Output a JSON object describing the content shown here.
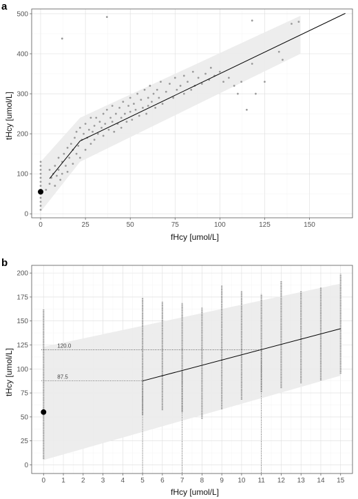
{
  "chart_data": [
    {
      "panel": "a",
      "type": "scatter",
      "xlabel": "fHcy [umol/L]",
      "ylabel": "tHcy [umol/L]",
      "xlim": [
        -5,
        174
      ],
      "ylim": [
        -10,
        512
      ],
      "xticks": [
        0,
        25,
        50,
        75,
        100,
        125,
        150
      ],
      "yticks": [
        0,
        100,
        200,
        300,
        400,
        500
      ],
      "grid": true,
      "band": {
        "x": [
          0,
          0,
          22,
          145,
          145,
          22,
          0
        ],
        "y": [
          5,
          130,
          240,
          495,
          400,
          130,
          5
        ],
        "color": "#ebebeb"
      },
      "fit_line": {
        "x": [
          5,
          22,
          170
        ],
        "y": [
          88,
          182,
          501
        ],
        "color": "#000000"
      },
      "marker": {
        "x": 0,
        "y": 55
      },
      "scatter_color": "#9a9a9a",
      "points": [
        [
          0,
          10
        ],
        [
          0,
          20
        ],
        [
          0,
          30
        ],
        [
          0,
          40
        ],
        [
          0,
          50
        ],
        [
          0,
          60
        ],
        [
          0,
          70
        ],
        [
          0,
          80
        ],
        [
          0,
          90
        ],
        [
          0,
          100
        ],
        [
          0,
          110
        ],
        [
          0,
          120
        ],
        [
          0,
          130
        ],
        [
          3,
          60
        ],
        [
          5,
          75
        ],
        [
          5,
          110
        ],
        [
          6,
          90
        ],
        [
          7,
          100
        ],
        [
          8,
          70
        ],
        [
          8,
          120
        ],
        [
          9,
          95
        ],
        [
          10,
          110
        ],
        [
          10,
          140
        ],
        [
          11,
          85
        ],
        [
          12,
          130
        ],
        [
          12,
          100
        ],
        [
          13,
          150
        ],
        [
          14,
          120
        ],
        [
          15,
          165
        ],
        [
          15,
          105
        ],
        [
          16,
          140
        ],
        [
          17,
          175
        ],
        [
          18,
          125
        ],
        [
          18,
          160
        ],
        [
          19,
          190
        ],
        [
          20,
          150
        ],
        [
          20,
          205
        ],
        [
          21,
          170
        ],
        [
          22,
          140
        ],
        [
          22,
          215
        ],
        [
          23,
          185
        ],
        [
          24,
          200
        ],
        [
          25,
          160
        ],
        [
          25,
          225
        ],
        [
          26,
          190
        ],
        [
          27,
          210
        ],
        [
          28,
          175
        ],
        [
          28,
          240
        ],
        [
          29,
          205
        ],
        [
          30,
          220
        ],
        [
          30,
          185
        ],
        [
          31,
          240
        ],
        [
          32,
          200
        ],
        [
          33,
          230
        ],
        [
          34,
          215
        ],
        [
          35,
          250
        ],
        [
          35,
          195
        ],
        [
          36,
          225
        ],
        [
          37,
          260
        ],
        [
          38,
          210
        ],
        [
          39,
          240
        ],
        [
          40,
          230
        ],
        [
          40,
          270
        ],
        [
          41,
          205
        ],
        [
          42,
          250
        ],
        [
          43,
          225
        ],
        [
          44,
          265
        ],
        [
          45,
          240
        ],
        [
          45,
          215
        ],
        [
          46,
          280
        ],
        [
          47,
          250
        ],
        [
          48,
          230
        ],
        [
          49,
          270
        ],
        [
          50,
          255
        ],
        [
          50,
          290
        ],
        [
          51,
          235
        ],
        [
          52,
          275
        ],
        [
          53,
          260
        ],
        [
          54,
          300
        ],
        [
          55,
          245
        ],
        [
          56,
          285
        ],
        [
          57,
          265
        ],
        [
          58,
          310
        ],
        [
          59,
          250
        ],
        [
          60,
          290
        ],
        [
          60,
          270
        ],
        [
          61,
          320
        ],
        [
          62,
          280
        ],
        [
          63,
          300
        ],
        [
          64,
          265
        ],
        [
          65,
          310
        ],
        [
          66,
          290
        ],
        [
          67,
          330
        ],
        [
          68,
          275
        ],
        [
          70,
          305
        ],
        [
          72,
          325
        ],
        [
          74,
          290
        ],
        [
          75,
          340
        ],
        [
          76,
          310
        ],
        [
          78,
          320
        ],
        [
          80,
          300
        ],
        [
          80,
          345
        ],
        [
          82,
          330
        ],
        [
          84,
          310
        ],
        [
          85,
          355
        ],
        [
          86,
          320
        ],
        [
          88,
          340
        ],
        [
          90,
          325
        ],
        [
          92,
          350
        ],
        [
          94,
          335
        ],
        [
          95,
          365
        ],
        [
          97,
          345
        ],
        [
          100,
          355
        ],
        [
          102,
          330
        ],
        [
          105,
          340
        ],
        [
          108,
          320
        ],
        [
          110,
          300
        ],
        [
          112,
          330
        ],
        [
          115,
          260
        ],
        [
          118,
          375
        ],
        [
          120,
          300
        ],
        [
          125,
          330
        ],
        [
          133,
          405
        ],
        [
          135,
          385
        ],
        [
          140,
          475
        ],
        [
          12,
          438
        ],
        [
          37,
          492
        ],
        [
          118,
          483
        ],
        [
          144,
          480
        ]
      ]
    },
    {
      "panel": "b",
      "type": "scatter",
      "xlabel": "fHcy [umol/L]",
      "ylabel": "tHcy [umol/L]",
      "xlim": [
        -0.6,
        15.6
      ],
      "ylim": [
        -9,
        208
      ],
      "xticks": [
        0,
        1,
        2,
        3,
        4,
        5,
        6,
        7,
        8,
        9,
        10,
        11,
        12,
        13,
        14,
        15
      ],
      "yticks": [
        0,
        25,
        50,
        75,
        100,
        125,
        150,
        175,
        200
      ],
      "grid": true,
      "band": {
        "x": [
          0,
          0,
          15,
          15
        ],
        "y": [
          5,
          123,
          189,
          93
        ],
        "color": "#ebebeb"
      },
      "fit_line": {
        "x": [
          5,
          15
        ],
        "y": [
          87.5,
          142
        ],
        "color": "#000000"
      },
      "marker": {
        "x": 0,
        "y": 55
      },
      "scatter_color": "#9a9a9a",
      "reference_lines": [
        {
          "y": 120.0,
          "x_end": 11,
          "label": "120.0"
        },
        {
          "y": 87.5,
          "x_end": 5,
          "label": "87.5"
        }
      ],
      "vertical_drops": [
        {
          "x": 5,
          "y": 87.5
        },
        {
          "x": 7,
          "y": 98.4
        },
        {
          "x": 11,
          "y": 120.0
        }
      ],
      "columns": [
        {
          "x": 0,
          "min": 6,
          "max": 162
        },
        {
          "x": 5,
          "min": 52,
          "max": 174
        },
        {
          "x": 6,
          "min": 57,
          "max": 170
        },
        {
          "x": 7,
          "min": 55,
          "max": 169
        },
        {
          "x": 8,
          "min": 48,
          "max": 164
        },
        {
          "x": 9,
          "min": 58,
          "max": 187
        },
        {
          "x": 10,
          "min": 68,
          "max": 181
        },
        {
          "x": 11,
          "min": 76,
          "max": 178
        },
        {
          "x": 12,
          "min": 80,
          "max": 192
        },
        {
          "x": 13,
          "min": 85,
          "max": 181
        },
        {
          "x": 14,
          "min": 88,
          "max": 185
        },
        {
          "x": 15,
          "min": 95,
          "max": 199
        }
      ]
    }
  ]
}
